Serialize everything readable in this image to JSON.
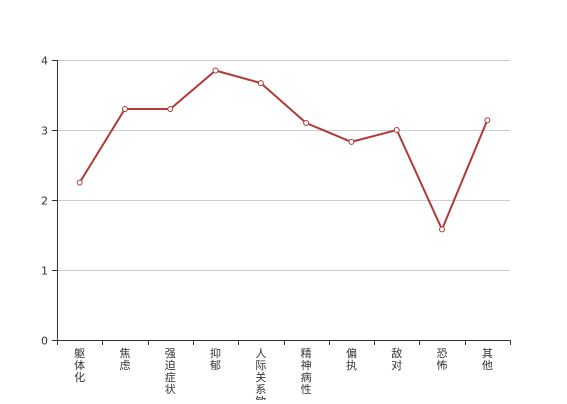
{
  "chart_data": {
    "type": "line",
    "title": "",
    "xlabel": "",
    "ylabel": "",
    "categories": [
      "躯体化",
      "焦虑",
      "强迫症状",
      "抑郁",
      "人际关系敏感",
      "精神病性",
      "偏执",
      "敌对",
      "恐怖",
      "其他"
    ],
    "series": [
      {
        "values": [
          2.25,
          3.3,
          3.3,
          3.85,
          3.67,
          3.1,
          2.83,
          3.0,
          1.58,
          3.14
        ]
      }
    ],
    "ylim": [
      0,
      4
    ],
    "yticks": [
      0,
      1,
      2,
      3,
      4
    ],
    "grid": true,
    "legend": "none",
    "colors": {
      "line": "#b03a37",
      "marker_fill": "#ffffff",
      "grid": "#cccccc",
      "axis": "#333333",
      "text": "#333333"
    }
  }
}
